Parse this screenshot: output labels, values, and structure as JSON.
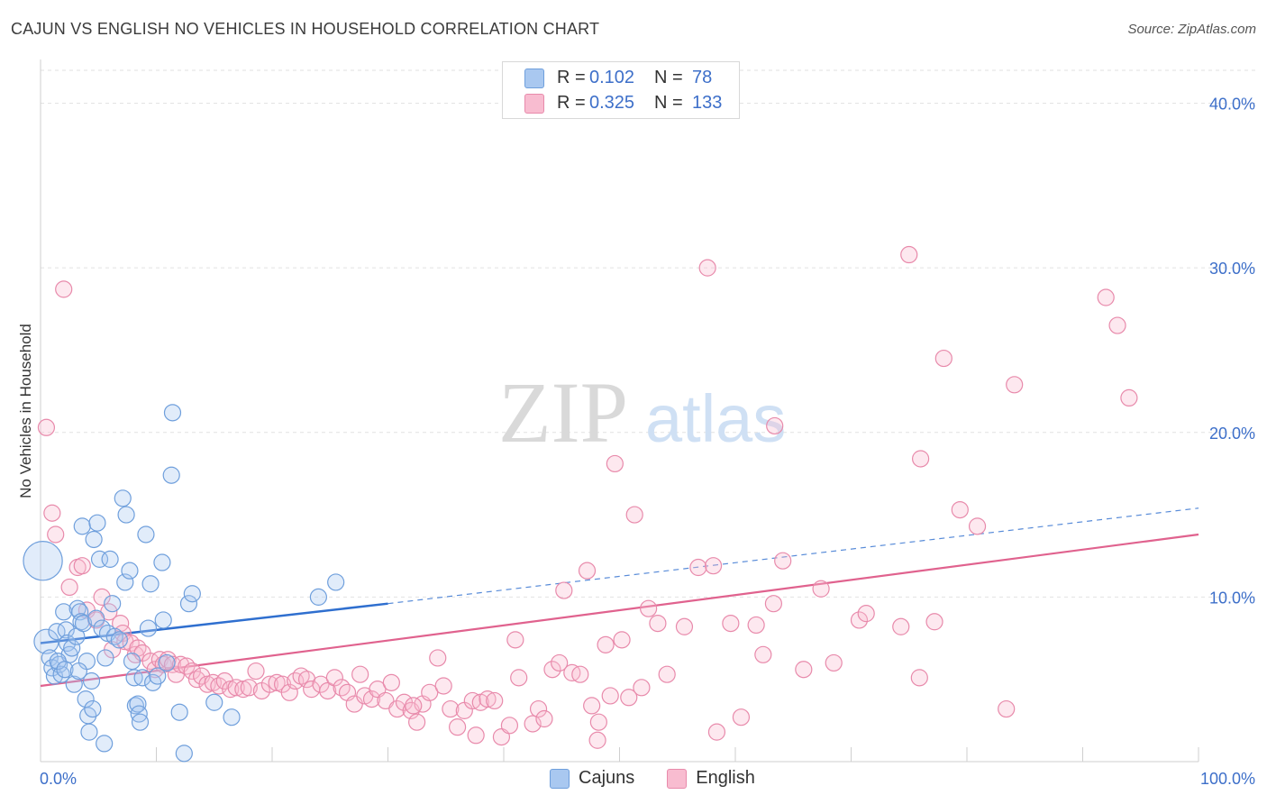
{
  "title": "CAJUN VS ENGLISH NO VEHICLES IN HOUSEHOLD CORRELATION CHART",
  "source": "Source: ZipAtlas.com",
  "watermark": {
    "zip": "ZIP",
    "atlas": "atlas"
  },
  "legend": {
    "rows": [
      {
        "r_label": "R =",
        "r_value": "0.102",
        "n_label": "N =",
        "n_value": "78",
        "color": "#a9c8f0",
        "border": "#6f9fdc"
      },
      {
        "r_label": "R =",
        "r_value": "0.325",
        "n_label": "N =",
        "n_value": "133",
        "color": "#f8bcd0",
        "border": "#e88aab"
      }
    ]
  },
  "bottom_legend": [
    {
      "label": "Cajuns",
      "color": "#a9c8f0",
      "border": "#6f9fdc"
    },
    {
      "label": "English",
      "color": "#f8bcd0",
      "border": "#e88aab"
    }
  ],
  "chart_data": {
    "type": "scatter",
    "title": "CAJUN VS ENGLISH NO VEHICLES IN HOUSEHOLD CORRELATION CHART",
    "xlabel": "",
    "ylabel": "No Vehicles in Household",
    "xlim": [
      0,
      100
    ],
    "ylim": [
      0,
      42
    ],
    "x_tick_labels": [
      "0.0%",
      "100.0%"
    ],
    "y_ticks": [
      10,
      20,
      30,
      40
    ],
    "y_tick_labels": [
      "10.0%",
      "20.0%",
      "30.0%",
      "40.0%"
    ],
    "grid": true,
    "colors": {
      "cajuns": "#5b8fd8",
      "english": "#e97ba0",
      "cajuns_line": "#2f6fcf",
      "english_line": "#e0628e",
      "tick_label": "#3d6fc9"
    },
    "series": [
      {
        "name": "Cajuns",
        "trend": {
          "x": [
            0,
            30
          ],
          "y": [
            7.2,
            9.6
          ],
          "dashed_to": [
            100,
            15.4
          ]
        },
        "points": [
          [
            0.2,
            12.2,
            2.4
          ],
          [
            0.5,
            7.3,
            1.5
          ],
          [
            0.8,
            6.3,
            1
          ],
          [
            1,
            5.7,
            1
          ],
          [
            1.2,
            5.2,
            1
          ],
          [
            1.4,
            7.9,
            1
          ],
          [
            1.6,
            5.9,
            1
          ],
          [
            1.8,
            5.3,
            1
          ],
          [
            2,
            9.1,
            1
          ],
          [
            2.2,
            8,
            1
          ],
          [
            2.3,
            7.2,
            1
          ],
          [
            2.5,
            6.5,
            1
          ],
          [
            2.7,
            6.9,
            1
          ],
          [
            2.9,
            4.7,
            1
          ],
          [
            3.1,
            7.6,
            1
          ],
          [
            3.2,
            9.3,
            1
          ],
          [
            3.4,
            9.1,
            1
          ],
          [
            3.5,
            8.5,
            1
          ],
          [
            3.6,
            14.3,
            1
          ],
          [
            3.7,
            8.4,
            1
          ],
          [
            3.9,
            3.8,
            1
          ],
          [
            4,
            6.1,
            1
          ],
          [
            4.1,
            2.8,
            1
          ],
          [
            4.2,
            1.8,
            1
          ],
          [
            4.4,
            4.9,
            1
          ],
          [
            4.5,
            3.2,
            1
          ],
          [
            4.6,
            13.5,
            1
          ],
          [
            4.8,
            8.7,
            1
          ],
          [
            4.9,
            14.5,
            1
          ],
          [
            5.1,
            12.3,
            1
          ],
          [
            5.3,
            8.1,
            1
          ],
          [
            5.5,
            1.1,
            1
          ],
          [
            5.6,
            6.3,
            1
          ],
          [
            5.8,
            7.8,
            1
          ],
          [
            6,
            12.3,
            1
          ],
          [
            6.2,
            9.6,
            1
          ],
          [
            6.4,
            7.6,
            1
          ],
          [
            6.8,
            7.4,
            1
          ],
          [
            7.1,
            16,
            1
          ],
          [
            7.3,
            10.9,
            1
          ],
          [
            7.4,
            15,
            1
          ],
          [
            7.7,
            11.6,
            1
          ],
          [
            7.9,
            6.1,
            1
          ],
          [
            8.1,
            5.1,
            1
          ],
          [
            8.2,
            3.4,
            1
          ],
          [
            8.4,
            3.5,
            1
          ],
          [
            8.5,
            2.9,
            1
          ],
          [
            8.6,
            2.4,
            1
          ],
          [
            8.8,
            5.1,
            1
          ],
          [
            9.1,
            13.8,
            1
          ],
          [
            9.3,
            8.1,
            1
          ],
          [
            9.5,
            10.8,
            1
          ],
          [
            9.7,
            4.8,
            1
          ],
          [
            10.1,
            5.2,
            1
          ],
          [
            10.5,
            12.1,
            1
          ],
          [
            10.6,
            8.6,
            1
          ],
          [
            10.9,
            6,
            1
          ],
          [
            11.3,
            17.4,
            1
          ],
          [
            11.4,
            21.2,
            1
          ],
          [
            12,
            3,
            1
          ],
          [
            12.4,
            0.5,
            1
          ],
          [
            12.8,
            9.6,
            1
          ],
          [
            13.1,
            10.2,
            1
          ],
          [
            15,
            3.6,
            1
          ],
          [
            16.5,
            2.7,
            1
          ],
          [
            24,
            10,
            1
          ],
          [
            25.5,
            10.9,
            1
          ],
          [
            1.5,
            6.1,
            1
          ],
          [
            2.1,
            5.6,
            1
          ],
          [
            3.3,
            5.5,
            1
          ]
        ]
      },
      {
        "name": "English",
        "trend": {
          "x": [
            0,
            100
          ],
          "y": [
            4.6,
            13.8
          ]
        },
        "points": [
          [
            0.5,
            20.3,
            1
          ],
          [
            1,
            15.1,
            1
          ],
          [
            1.3,
            13.8,
            1
          ],
          [
            2,
            28.7,
            1
          ],
          [
            2.5,
            10.6,
            1
          ],
          [
            3.2,
            11.8,
            1
          ],
          [
            3.6,
            11.9,
            1
          ],
          [
            4,
            9.2,
            1
          ],
          [
            4.8,
            8.6,
            1
          ],
          [
            5.3,
            10,
            1
          ],
          [
            5.9,
            9.1,
            1
          ],
          [
            6.2,
            6.8,
            1
          ],
          [
            6.9,
            8.4,
            1
          ],
          [
            7.1,
            7.8,
            1
          ],
          [
            7.3,
            7.3,
            1
          ],
          [
            7.8,
            7.2,
            1
          ],
          [
            8.2,
            6.5,
            1
          ],
          [
            8.4,
            6.9,
            1
          ],
          [
            8.8,
            6.6,
            1
          ],
          [
            9.5,
            6.1,
            1
          ],
          [
            9.9,
            5.6,
            1
          ],
          [
            10.3,
            6.2,
            1
          ],
          [
            10.6,
            5.9,
            1
          ],
          [
            11,
            6.2,
            1
          ],
          [
            11.4,
            5.9,
            1
          ],
          [
            11.7,
            5.3,
            1
          ],
          [
            12.1,
            5.9,
            1
          ],
          [
            12.6,
            5.8,
            1
          ],
          [
            13.1,
            5.5,
            1
          ],
          [
            13.5,
            5,
            1
          ],
          [
            13.9,
            5.2,
            1
          ],
          [
            14.4,
            4.7,
            1
          ],
          [
            14.9,
            4.8,
            1
          ],
          [
            15.4,
            4.6,
            1
          ],
          [
            15.9,
            4.9,
            1
          ],
          [
            16.4,
            4.4,
            1
          ],
          [
            16.9,
            4.5,
            1
          ],
          [
            17.5,
            4.4,
            1
          ],
          [
            18,
            4.5,
            1
          ],
          [
            18.6,
            5.5,
            1
          ],
          [
            19.1,
            4.3,
            1
          ],
          [
            19.8,
            4.7,
            1
          ],
          [
            20.4,
            4.8,
            1
          ],
          [
            20.9,
            4.7,
            1
          ],
          [
            21.5,
            4.2,
            1
          ],
          [
            22,
            4.9,
            1
          ],
          [
            22.5,
            5.2,
            1
          ],
          [
            23,
            5,
            1
          ],
          [
            23.4,
            4.4,
            1
          ],
          [
            24.2,
            4.7,
            1
          ],
          [
            24.8,
            4.3,
            1
          ],
          [
            25.4,
            5.1,
            1
          ],
          [
            26,
            4.5,
            1
          ],
          [
            26.5,
            4.2,
            1
          ],
          [
            27.1,
            3.5,
            1
          ],
          [
            27.6,
            5.3,
            1
          ],
          [
            28,
            4,
            1
          ],
          [
            28.6,
            3.8,
            1
          ],
          [
            29.1,
            4.4,
            1
          ],
          [
            29.8,
            3.7,
            1
          ],
          [
            30.3,
            4.8,
            1
          ],
          [
            30.8,
            3.2,
            1
          ],
          [
            31.4,
            3.6,
            1
          ],
          [
            32,
            3.1,
            1
          ],
          [
            32.5,
            2.4,
            1
          ],
          [
            33,
            3.5,
            1
          ],
          [
            33.6,
            4.2,
            1
          ],
          [
            34.3,
            6.3,
            1
          ],
          [
            34.8,
            4.6,
            1
          ],
          [
            35.4,
            3.2,
            1
          ],
          [
            36,
            2.1,
            1
          ],
          [
            36.6,
            3.1,
            1
          ],
          [
            37.3,
            3.7,
            1
          ],
          [
            38,
            3.6,
            1
          ],
          [
            38.6,
            3.8,
            1
          ],
          [
            39.2,
            3.7,
            1
          ],
          [
            39.8,
            1.5,
            1
          ],
          [
            40.5,
            2.2,
            1
          ],
          [
            41,
            7.4,
            1
          ],
          [
            41.3,
            5.1,
            1
          ],
          [
            42.5,
            2.3,
            1
          ],
          [
            43,
            3.2,
            1
          ],
          [
            43.5,
            2.6,
            1
          ],
          [
            44.2,
            5.6,
            1
          ],
          [
            44.8,
            6,
            1
          ],
          [
            45.2,
            10.4,
            1
          ],
          [
            45.9,
            5.4,
            1
          ],
          [
            46.6,
            5.3,
            1
          ],
          [
            47.2,
            11.6,
            1
          ],
          [
            47.6,
            3.4,
            1
          ],
          [
            48.2,
            2.4,
            1
          ],
          [
            48.8,
            7.1,
            1
          ],
          [
            49.2,
            4,
            1
          ],
          [
            49.6,
            18.1,
            1
          ],
          [
            50.2,
            7.4,
            1
          ],
          [
            50.8,
            3.9,
            1
          ],
          [
            51.3,
            15,
            1
          ],
          [
            51.9,
            4.5,
            1
          ],
          [
            52.5,
            9.3,
            1
          ],
          [
            53.3,
            8.4,
            1
          ],
          [
            54.1,
            5.3,
            1
          ],
          [
            55.6,
            8.2,
            1
          ],
          [
            56.8,
            11.8,
            1
          ],
          [
            58.1,
            11.9,
            1
          ],
          [
            59.6,
            8.4,
            1
          ],
          [
            61.8,
            8.3,
            1
          ],
          [
            62.4,
            6.5,
            1
          ],
          [
            63.3,
            9.6,
            1
          ],
          [
            64.1,
            12.2,
            1
          ],
          [
            65.9,
            5.6,
            1
          ],
          [
            67.4,
            10.5,
            1
          ],
          [
            68.5,
            6,
            1
          ],
          [
            70.7,
            8.6,
            1
          ],
          [
            71.3,
            9,
            1
          ],
          [
            74.3,
            8.2,
            1
          ],
          [
            75.9,
            5.1,
            1
          ],
          [
            76,
            18.4,
            1
          ],
          [
            78,
            24.5,
            1
          ],
          [
            79.4,
            15.3,
            1
          ],
          [
            80.9,
            14.3,
            1
          ],
          [
            57.6,
            30,
            1
          ],
          [
            75,
            30.8,
            1
          ],
          [
            84.1,
            22.9,
            1
          ],
          [
            92,
            28.2,
            1
          ],
          [
            93,
            26.5,
            1
          ],
          [
            94,
            22.1,
            1
          ],
          [
            63.4,
            20.4,
            1
          ],
          [
            77.2,
            8.5,
            1
          ],
          [
            83.4,
            3.2,
            1
          ],
          [
            60.5,
            2.7,
            1
          ],
          [
            58.4,
            1.8,
            1
          ],
          [
            48.1,
            1.3,
            1
          ],
          [
            37.6,
            1.6,
            1
          ],
          [
            32.2,
            3.4,
            1
          ]
        ]
      }
    ]
  }
}
